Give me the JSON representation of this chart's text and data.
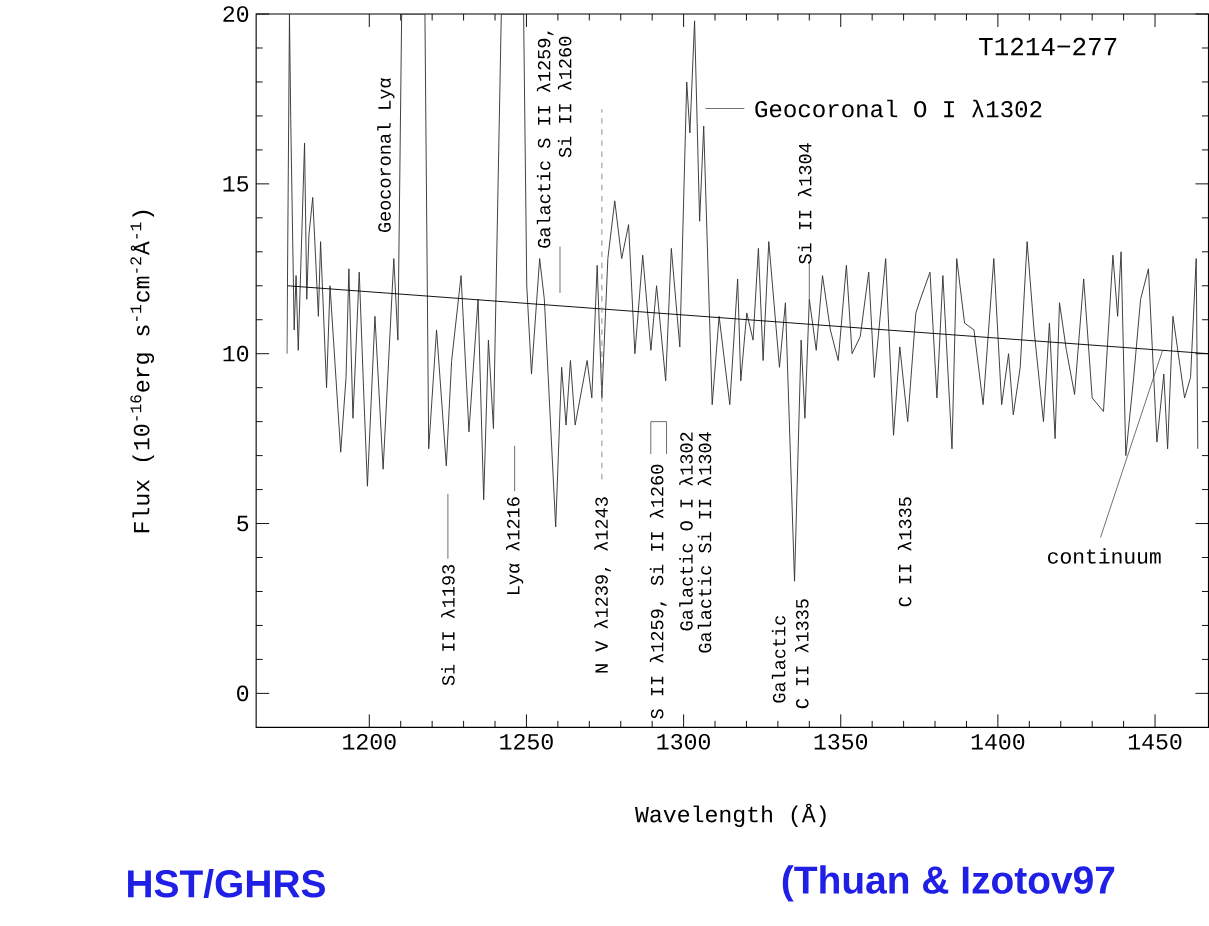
{
  "chart_data": {
    "type": "line",
    "title": "T1214−277",
    "xlabel": "Wavelength (Å)",
    "ylabel": "Flux (10$^{-16}$erg s$^{-1}$cm$^{-2}$Å$^{-1}$)",
    "xlim": [
      1164,
      1467
    ],
    "ylim": [
      -1,
      20
    ],
    "xticks": [
      1200,
      1250,
      1300,
      1350,
      1400,
      1450
    ],
    "yticks": [
      0,
      5,
      10,
      15,
      20
    ],
    "grid": false,
    "series": [
      {
        "color": "#333333",
        "x": [
          1173.8,
          1174.6,
          1175.0,
          1176.1,
          1176.7,
          1177.4,
          1179.4,
          1180.1,
          1180.8,
          1182.0,
          1183.8,
          1184.5,
          1186.4,
          1187.5,
          1190.9,
          1192.6,
          1193.5,
          1194.8,
          1196.8,
          1198.2,
          1199.4,
          1201.8,
          1204.4,
          1207.8,
          1209.1,
          1210.3,
          1217.7,
          1218.9,
          1221.4,
          1224.5,
          1226.2,
          1229.2,
          1231.7,
          1234.6,
          1236.4,
          1237.9,
          1239.5,
          1242.0,
          1249.1,
          1250.1,
          1251.6,
          1254.2,
          1255.7,
          1259.3,
          1261.2,
          1262.6,
          1264.0,
          1265.5,
          1269.3,
          1270.8,
          1272.5,
          1274.0,
          1275.9,
          1278.1,
          1280.3,
          1282.5,
          1284.5,
          1287.0,
          1289.6,
          1291.4,
          1294.3,
          1296.1,
          1298.8,
          1301.0,
          1302.0,
          1303.5,
          1305.1,
          1306.4,
          1309.1,
          1311.3,
          1314.7,
          1317.2,
          1318.2,
          1320.1,
          1322.1,
          1323.8,
          1325.3,
          1327.1,
          1330.5,
          1332.4,
          1335.3,
          1337.4,
          1338.6,
          1340.0,
          1342.2,
          1344.2,
          1346.7,
          1349.2,
          1351.8,
          1353.6,
          1356.2,
          1358.9,
          1360.7,
          1364.3,
          1366.8,
          1368.8,
          1371.3,
          1373.9,
          1375.7,
          1378.4,
          1380.6,
          1382.5,
          1385.4,
          1386.9,
          1389.4,
          1392.4,
          1395.3,
          1398.7,
          1401.2,
          1403.4,
          1404.9,
          1407.1,
          1409.3,
          1411.5,
          1414.5,
          1416.4,
          1418.2,
          1419.6,
          1421.8,
          1424.4,
          1427.3,
          1430.0,
          1433.6,
          1436.6,
          1438.1,
          1439.2,
          1440.7,
          1443.2,
          1445.4,
          1447.9,
          1450.6,
          1452.8,
          1454.0,
          1455.7,
          1459.4,
          1461.3,
          1463.1,
          1463.6
        ],
        "values": [
          10.0,
          20,
          16.9,
          10.7,
          12.3,
          10.1,
          16.2,
          11.6,
          13.5,
          14.6,
          11.1,
          13.3,
          9.0,
          12.0,
          7.1,
          9.3,
          12.5,
          8.1,
          12.4,
          8.9,
          6.1,
          11.1,
          6.6,
          12.8,
          10.4,
          20,
          20,
          7.2,
          10.7,
          6.7,
          9.8,
          12.3,
          7.7,
          11.6,
          5.7,
          10.4,
          7.8,
          20,
          20,
          12.0,
          9.4,
          12.8,
          11.6,
          4.9,
          9.6,
          7.9,
          9.8,
          7.9,
          9.8,
          8.7,
          12.6,
          8.7,
          12.8,
          14.5,
          12.8,
          13.8,
          10.0,
          12.9,
          10.1,
          12.0,
          9.2,
          13.1,
          10.2,
          18.0,
          16.5,
          19.8,
          13.9,
          16.7,
          8.5,
          11.1,
          8.5,
          12.2,
          9.2,
          11.2,
          10.4,
          13.1,
          9.8,
          13.3,
          9.6,
          11.5,
          3.3,
          10.4,
          8.1,
          11.6,
          10.1,
          12.3,
          10.7,
          9.8,
          12.6,
          10.0,
          10.5,
          12.4,
          9.3,
          12.8,
          7.6,
          10.2,
          8.0,
          11.2,
          11.7,
          12.4,
          8.7,
          12.3,
          7.2,
          12.8,
          10.9,
          10.7,
          8.5,
          12.8,
          8.5,
          10.0,
          8.2,
          9.6,
          13.3,
          10.7,
          8.0,
          10.9,
          7.5,
          11.5,
          10.1,
          8.8,
          12.2,
          8.7,
          8.3,
          12.9,
          11.1,
          13.0,
          7.0,
          9.3,
          11.6,
          12.5,
          7.4,
          9.4,
          7.2,
          11.1,
          8.7,
          9.3,
          12.8,
          7.2
        ]
      },
      {
        "color": "#000000",
        "x": [
          1174,
          1467
        ],
        "values": [
          12.0,
          10.0
        ]
      },
      {
        "color": "#888888",
        "line_style": "dashed",
        "x": [
          1274,
          1274
        ],
        "values": [
          6.3,
          17.2
        ]
      }
    ],
    "annotations": [
      "Geocoronal Lyα",
      "Si II λ1193",
      "Lyα λ1216",
      "Galactic S II λ1259,",
      "Si II λ1260",
      "N V λ1239, λ1243",
      "S II λ1259, Si II λ1260",
      "Galactic O I λ1302",
      "Galactic Si II λ1304",
      "Galactic",
      "C II λ1335",
      {
        "text": "Si II λ1304",
        "x": 1340.0,
        "y": 11.6
      },
      "C II λ1335",
      "Geocoronal O I λ1302",
      {
        "text": "continuum",
        "x": 1452.4,
        "y": 10.1
      },
      "HST/GHRS",
      "(Thuan & Izotov97"
    ]
  }
}
